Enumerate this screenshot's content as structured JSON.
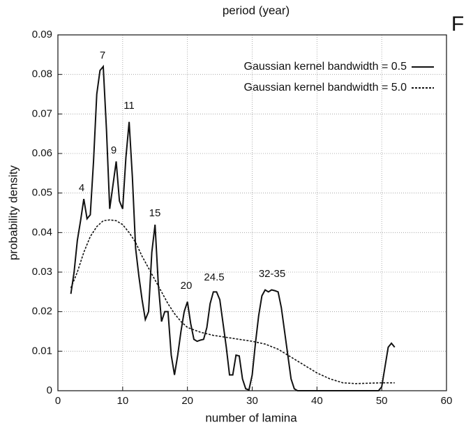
{
  "chart_data": {
    "type": "line",
    "top_label": "period (year)",
    "panel_label": "F",
    "xlabel": "number of lamina",
    "ylabel": "probability density",
    "xlim": [
      0,
      60
    ],
    "xticks": [
      0,
      10,
      20,
      30,
      40,
      50,
      60
    ],
    "ylim": [
      0,
      0.09
    ],
    "yticks": [
      0,
      0.01,
      0.02,
      0.03,
      0.04,
      0.05,
      0.06,
      0.07,
      0.08,
      0.09
    ],
    "grid": true,
    "legend": "upper right",
    "series": [
      {
        "name": "Gaussian kernel bandwidth = 0.5",
        "color": "#111111",
        "dash": "solid",
        "x": [
          2,
          2.5,
          3,
          3.5,
          4,
          4.5,
          5,
          5.5,
          6,
          6.5,
          7,
          7.5,
          8,
          8.5,
          9,
          9.5,
          10,
          10.5,
          11,
          11.5,
          12,
          12.5,
          13,
          13.5,
          14,
          14.5,
          15,
          15.5,
          16,
          16.5,
          17,
          17.5,
          18,
          18.5,
          19,
          19.5,
          20,
          20.5,
          21,
          21.5,
          22,
          22.5,
          23,
          23.5,
          24,
          24.5,
          25,
          25.5,
          26,
          26.5,
          27,
          27.5,
          28,
          28.5,
          29,
          29.5,
          30,
          30.5,
          31,
          31.5,
          32,
          32.5,
          33,
          33.5,
          34,
          34.5,
          35,
          35.5,
          36,
          36.5,
          37,
          40,
          45,
          49.5,
          50,
          50.5,
          51,
          51.5,
          52
        ],
        "values": [
          0.0245,
          0.03,
          0.038,
          0.043,
          0.0485,
          0.0435,
          0.0445,
          0.058,
          0.075,
          0.081,
          0.082,
          0.066,
          0.046,
          0.052,
          0.058,
          0.048,
          0.046,
          0.059,
          0.068,
          0.054,
          0.036,
          0.029,
          0.023,
          0.018,
          0.02,
          0.035,
          0.042,
          0.027,
          0.0175,
          0.02,
          0.02,
          0.009,
          0.004,
          0.009,
          0.015,
          0.02,
          0.0225,
          0.017,
          0.013,
          0.0125,
          0.0128,
          0.013,
          0.016,
          0.022,
          0.025,
          0.025,
          0.023,
          0.017,
          0.011,
          0.004,
          0.004,
          0.009,
          0.0088,
          0.003,
          0.0005,
          0.0002,
          0.004,
          0.012,
          0.019,
          0.024,
          0.0255,
          0.025,
          0.0255,
          0.0253,
          0.025,
          0.021,
          0.015,
          0.009,
          0.003,
          0.0005,
          0,
          0,
          0,
          0,
          0.001,
          0.006,
          0.011,
          0.012,
          0.011
        ]
      },
      {
        "name": "Gaussian kernel bandwidth = 5.0",
        "color": "#111111",
        "dash": "dashed",
        "x": [
          2,
          3,
          4,
          5,
          6,
          7,
          8,
          9,
          10,
          11,
          12,
          13,
          14,
          15,
          16,
          17,
          18,
          19,
          20,
          22,
          24,
          26,
          28,
          30,
          32,
          34,
          36,
          38,
          40,
          42,
          44,
          46,
          48,
          50,
          52
        ],
        "values": [
          0.026,
          0.03,
          0.035,
          0.039,
          0.0415,
          0.043,
          0.0432,
          0.043,
          0.042,
          0.04,
          0.0375,
          0.034,
          0.031,
          0.028,
          0.025,
          0.022,
          0.0195,
          0.0175,
          0.016,
          0.0148,
          0.014,
          0.0135,
          0.013,
          0.0125,
          0.0118,
          0.0105,
          0.0085,
          0.0065,
          0.0045,
          0.003,
          0.002,
          0.0018,
          0.0019,
          0.002,
          0.002
        ]
      }
    ],
    "annotations": [
      "4",
      "7",
      "9",
      "11",
      "15",
      "20",
      "24.5",
      "32-35"
    ]
  }
}
